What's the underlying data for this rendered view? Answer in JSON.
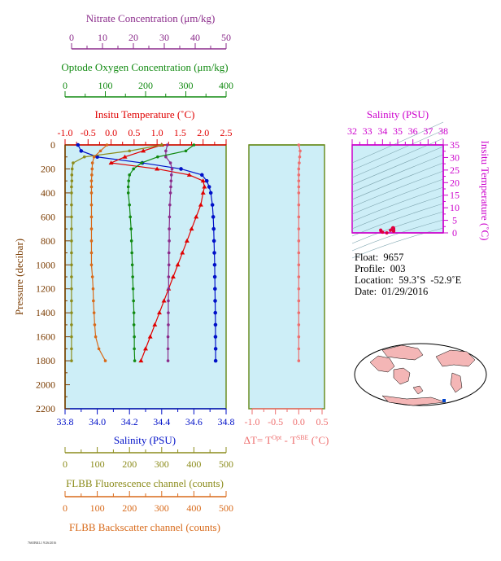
{
  "axes": {
    "nitrate": {
      "label": "Nitrate Concentration (μm/kg)",
      "ticks": [
        "0",
        "10",
        "20",
        "30",
        "40",
        "50"
      ],
      "color": "#8b2c8b"
    },
    "oxygen": {
      "label": "Optode Oxygen Concentration (μm/kg)",
      "ticks": [
        "0",
        "100",
        "200",
        "300",
        "400"
      ],
      "color": "#118a11"
    },
    "temperature": {
      "label": "Insitu Temperature (˚C)",
      "ticks": [
        "-1.0",
        "-0.5",
        "0.0",
        "0.5",
        "1.0",
        "1.5",
        "2.0",
        "2.5"
      ],
      "color": "#e00000"
    },
    "pressure": {
      "label": "Pressure (decibar)",
      "ticks": [
        "0",
        "200",
        "400",
        "600",
        "800",
        "1000",
        "1200",
        "1400",
        "1600",
        "1800",
        "2000",
        "2200"
      ],
      "color": "#7a3b00"
    },
    "salinity": {
      "label": "Salinity (PSU)",
      "ticks": [
        "33.8",
        "34.0",
        "34.2",
        "34.4",
        "34.6",
        "34.8"
      ],
      "color": "#0010c8"
    },
    "fluorescence": {
      "label": "FLBB Fluorescence channel (counts)",
      "ticks": [
        "0",
        "100",
        "200",
        "300",
        "400",
        "500"
      ],
      "color": "#8c8c1c"
    },
    "backscatter": {
      "label": "FLBB Backscatter channel (counts)",
      "ticks": [
        "0",
        "100",
        "200",
        "300",
        "400",
        "500"
      ],
      "color": "#d86a1a"
    },
    "delta_t": {
      "label_main": "ΔT= T",
      "label_sup1": "Opt",
      "label_mid": " - T",
      "label_sup2": "SBE",
      "label_end": " (˚C)",
      "ticks": [
        "-1.0",
        "-0.5",
        "0.0",
        "0.5"
      ],
      "color": "#ee6f6f"
    },
    "ts_salinity": {
      "label": "Salinity (PSU)",
      "ticks": [
        "32",
        "33",
        "34",
        "35",
        "36",
        "37",
        "38"
      ],
      "color": "#cc00cc"
    },
    "ts_temperature": {
      "label": "Insitu Temperature (˚C)",
      "ticks": [
        "0",
        "5",
        "10",
        "15",
        "20",
        "25",
        "30",
        "35"
      ],
      "color": "#cc00cc"
    }
  },
  "info": {
    "float_label": "Float:",
    "float_value": "9657",
    "profile_label": "Profile:",
    "profile_value": "003",
    "location_label": "Location:",
    "location_value": "59.3˚S  -52.9˚E",
    "date_label": "Date:",
    "date_value": "01/29/2016"
  },
  "footer_small": "7665BKL1 9/26/2016",
  "colors": {
    "panel_bg": "#cdeef7",
    "frame": "#6b8e23"
  },
  "chart_data": {
    "type": "line",
    "pressure": [
      0,
      50,
      100,
      150,
      200,
      250,
      300,
      350,
      400,
      500,
      600,
      700,
      800,
      900,
      1000,
      1100,
      1200,
      1300,
      1400,
      1500,
      1600,
      1700,
      1800
    ],
    "series": [
      {
        "name": "Salinity",
        "unit": "PSU",
        "values": [
          33.88,
          33.9,
          34.0,
          34.28,
          34.52,
          34.65,
          34.68,
          34.695,
          34.705,
          34.715,
          34.72,
          34.723,
          34.725,
          34.727,
          34.729,
          34.73,
          34.731,
          34.732,
          34.733,
          34.734,
          34.734,
          34.735,
          34.735
        ]
      },
      {
        "name": "Insitu Temperature",
        "unit": "C",
        "values": [
          1.1,
          0.7,
          0.3,
          0.0,
          1.0,
          1.7,
          2.0,
          2.03,
          2.0,
          1.95,
          1.85,
          1.75,
          1.65,
          1.55,
          1.45,
          1.35,
          1.25,
          1.15,
          1.05,
          0.95,
          0.85,
          0.75,
          0.65
        ]
      },
      {
        "name": "Nitrate",
        "unit": "μm/kg",
        "values": [
          31,
          30.5,
          30.5,
          32,
          32.5,
          32.3,
          32.2,
          32.1,
          32.0,
          31.8,
          31.7,
          31.6,
          31.6,
          31.5,
          31.5,
          31.4,
          31.4,
          31.3,
          31.3,
          31.3,
          31.2,
          31.2,
          31.2
        ]
      },
      {
        "name": "Optode Oxygen",
        "unit": "μm/kg",
        "values": [
          320,
          300,
          230,
          190,
          170,
          160,
          158,
          157,
          157,
          160,
          162,
          164,
          165,
          166,
          167,
          168,
          169,
          170,
          171,
          171,
          172,
          172,
          173
        ]
      },
      {
        "name": "FLBB Fluorescence",
        "unit": "counts",
        "values": [
          300,
          200,
          60,
          25,
          22,
          21,
          21,
          20,
          20,
          20,
          20,
          20,
          20,
          20,
          20,
          20,
          20,
          20,
          20,
          20,
          20,
          20,
          20
        ]
      },
      {
        "name": "FLBB Backscatter",
        "unit": "counts",
        "values": [
          130,
          110,
          90,
          85,
          84,
          83,
          82,
          82,
          82,
          82,
          82,
          82,
          82,
          82,
          82,
          85,
          87,
          88,
          90,
          92,
          95,
          105,
          125
        ]
      },
      {
        "name": "Delta T",
        "unit": "C",
        "values": [
          0.0,
          0.03,
          0.02,
          0.01,
          0.0,
          0.0,
          0.0,
          0.0,
          0.0,
          0.0,
          0.0,
          0.0,
          0.0,
          0.0,
          0.0,
          0.0,
          0.0,
          0.0,
          0.0,
          0.0,
          0.0,
          0.0,
          0.0
        ]
      }
    ],
    "ylim": [
      2200,
      0
    ],
    "ts_diagram": {
      "xlim": [
        32,
        38
      ],
      "ylim": [
        0,
        35
      ]
    }
  }
}
